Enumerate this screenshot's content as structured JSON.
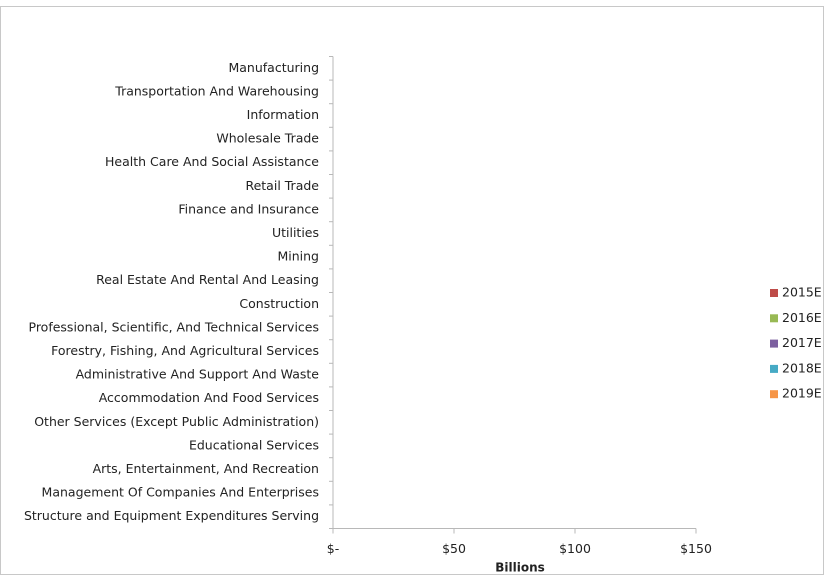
{
  "chart_data": {
    "type": "bar",
    "orientation": "horizontal",
    "x_label": "Billions",
    "categories": [
      "Manufacturing",
      "Transportation And Warehousing",
      "Information",
      "Wholesale Trade",
      "Health Care And Social Assistance",
      "Retail Trade",
      "Finance and Insurance",
      "Utilities",
      "Mining",
      "Real Estate And Rental And Leasing",
      "Construction",
      "Professional, Scientific, And Technical Services",
      "Forestry, Fishing, And Agricultural Services",
      "Administrative And Support And Waste",
      "Accommodation And Food Services",
      "Other Services (Except Public Administration)",
      "Educational Services",
      "Arts, Entertainment, And Recreation",
      "Management Of Companies And Enterprises",
      "Structure and Equipment Expenditures Serving"
    ],
    "series": [
      {
        "name": "2015E",
        "color": "#be4b48",
        "values": [
          0,
          0,
          0,
          0,
          0,
          0,
          0,
          0,
          0,
          0,
          0,
          0,
          0,
          0,
          0,
          0,
          0,
          0,
          0,
          0
        ]
      },
      {
        "name": "2016E",
        "color": "#98b954",
        "values": [
          0,
          0,
          0,
          0,
          0,
          0,
          0,
          0,
          0,
          0,
          0,
          0,
          0,
          0,
          0,
          0,
          0,
          0,
          0,
          0
        ]
      },
      {
        "name": "2017E",
        "color": "#7d60a0",
        "values": [
          0,
          0,
          0,
          0,
          0,
          0,
          0,
          0,
          0,
          0,
          0,
          0,
          0,
          0,
          0,
          0,
          0,
          0,
          0,
          0
        ]
      },
      {
        "name": "2018E",
        "color": "#46aac5",
        "values": [
          0,
          0,
          0,
          0,
          0,
          0,
          0,
          0,
          0,
          0,
          0,
          0,
          0,
          0,
          0,
          0,
          0,
          0,
          0,
          0
        ]
      },
      {
        "name": "2019E",
        "color": "#f69546",
        "values": [
          0,
          0,
          0,
          0,
          0,
          0,
          0,
          0,
          0,
          0,
          0,
          0,
          0,
          0,
          0,
          0,
          0,
          0,
          0,
          0
        ]
      }
    ],
    "xlim": [
      0,
      150
    ],
    "xticks": [
      {
        "value": 0,
        "label": "$-"
      },
      {
        "value": 50,
        "label": "$50"
      },
      {
        "value": 100,
        "label": "$100"
      },
      {
        "value": 150,
        "label": "$150"
      }
    ],
    "legend": "right"
  }
}
